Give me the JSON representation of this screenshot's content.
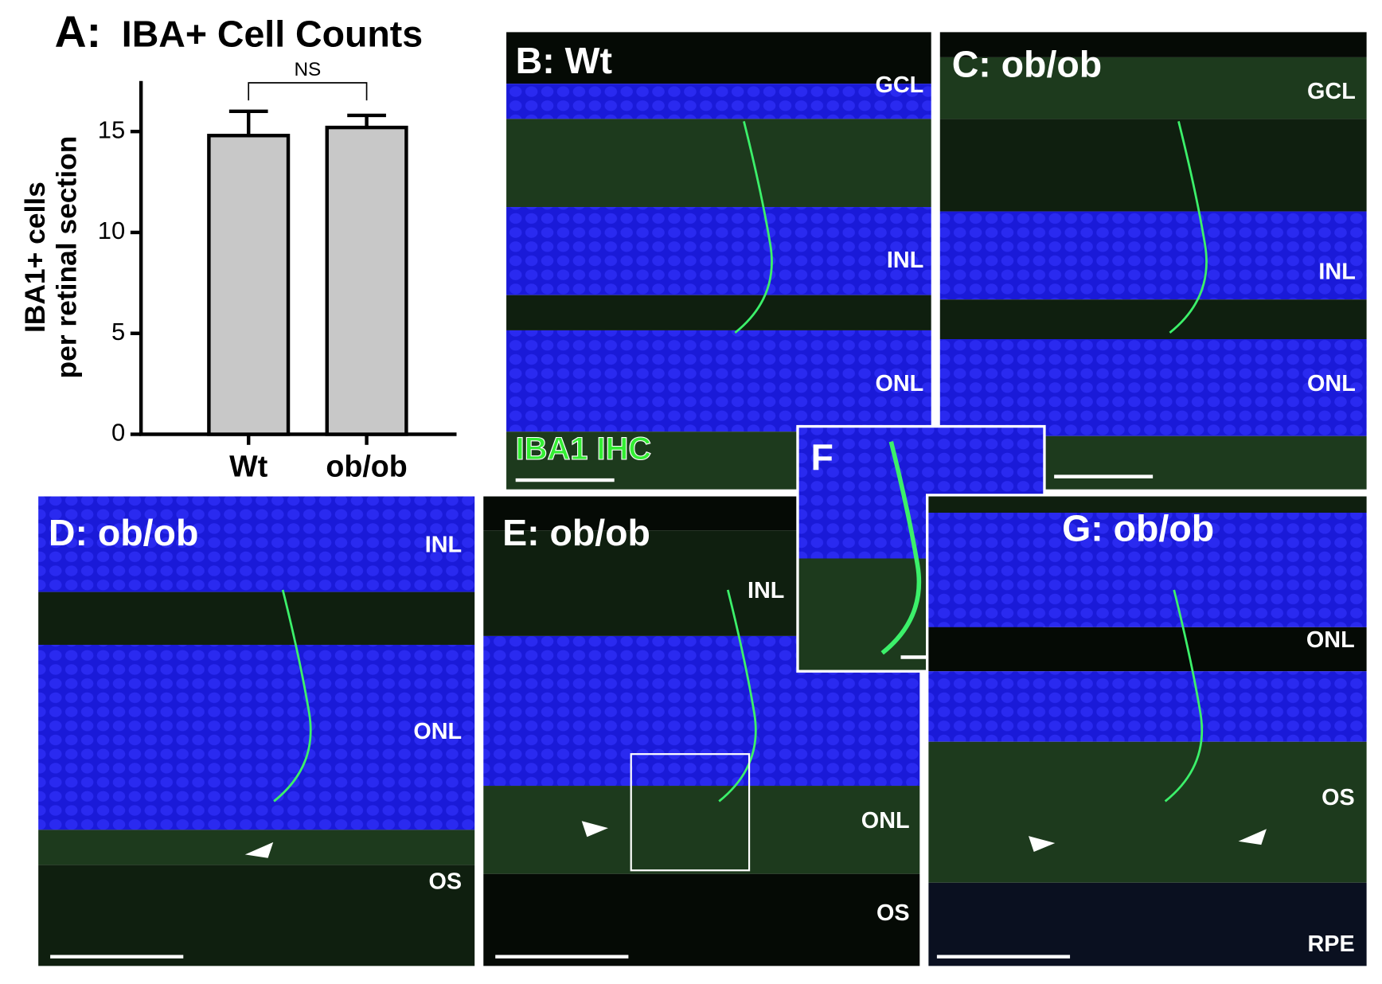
{
  "chart_data": {
    "type": "bar",
    "panel_label": "A:",
    "title": "IBA+ Cell Counts",
    "ylabel": [
      "IBA1+ cells",
      "per retinal section"
    ],
    "categories": [
      "Wt",
      "ob/ob"
    ],
    "values": [
      14.8,
      15.2
    ],
    "errors": [
      1.2,
      0.6
    ],
    "color": "#c8c8c8",
    "ylim": [
      0,
      17.5
    ],
    "yticks": [
      0,
      5,
      10,
      15
    ],
    "annotation": "NS"
  },
  "panels": [
    {
      "label": "B: Wt",
      "layers": [
        "GCL",
        "INL",
        "ONL"
      ],
      "stain": "IBA1 IHC"
    },
    {
      "label": "C: ob/ob",
      "layers": [
        "GCL",
        "INL",
        "ONL"
      ]
    },
    {
      "label": "D: ob/ob",
      "layers": [
        "INL",
        "ONL",
        "OS"
      ]
    },
    {
      "label": "E: ob/ob",
      "layers": [
        "INL",
        "ONL",
        "OS"
      ]
    },
    {
      "label": "F"
    },
    {
      "label": "G: ob/ob",
      "layers": [
        "ONL",
        "OS",
        "RPE"
      ]
    }
  ]
}
